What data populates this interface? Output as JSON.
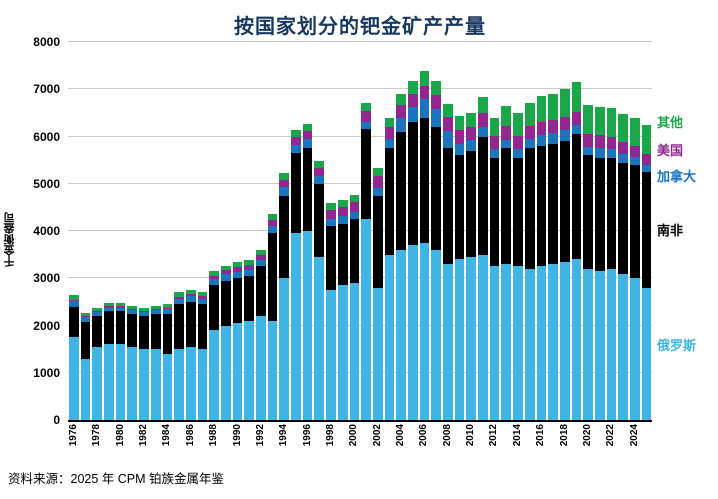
{
  "chart_data": {
    "type": "bar",
    "stacked": true,
    "title": "按国家划分的钯金矿产产量",
    "ylabel": "千金衡盎司",
    "source": "资料来源：2025 年 CPM 铂族金属年鉴",
    "ylim": [
      0,
      8000
    ],
    "ytick_step": 1000,
    "grid": true,
    "legend_position": "right",
    "x_label_every": 2,
    "x": [
      1976,
      1977,
      1978,
      1979,
      1980,
      1981,
      1982,
      1983,
      1984,
      1985,
      1986,
      1987,
      1988,
      1989,
      1990,
      1991,
      1992,
      1993,
      1994,
      1995,
      1996,
      1997,
      1998,
      1999,
      2000,
      2001,
      2002,
      2003,
      2004,
      2005,
      2006,
      2007,
      2008,
      2009,
      2010,
      2011,
      2012,
      2013,
      2014,
      2015,
      2016,
      2017,
      2018,
      2019,
      2020,
      2021,
      2022,
      2023,
      2024,
      2025
    ],
    "series": [
      {
        "name": "俄罗斯",
        "color": "#3FB4E5",
        "values": [
          1750,
          1300,
          1550,
          1600,
          1600,
          1550,
          1500,
          1500,
          1400,
          1500,
          1550,
          1500,
          1900,
          2000,
          2050,
          2100,
          2200,
          2100,
          3000,
          3950,
          4000,
          3450,
          2750,
          2850,
          2900,
          4250,
          2800,
          3500,
          3600,
          3700,
          3750,
          3600,
          3300,
          3400,
          3450,
          3500,
          3250,
          3300,
          3250,
          3200,
          3250,
          3300,
          3350,
          3400,
          3200,
          3150,
          3200,
          3100,
          3000,
          2800
        ]
      },
      {
        "name": "南非",
        "color": "#000000",
        "values": [
          650,
          780,
          650,
          700,
          700,
          700,
          700,
          750,
          850,
          950,
          950,
          950,
          950,
          950,
          950,
          950,
          1050,
          1850,
          1750,
          1700,
          1750,
          1550,
          1350,
          1300,
          1350,
          1900,
          1950,
          2250,
          2500,
          2600,
          2650,
          2600,
          2450,
          2200,
          2250,
          2500,
          2300,
          2450,
          2300,
          2550,
          2550,
          2550,
          2550,
          2650,
          2400,
          2400,
          2350,
          2350,
          2400,
          2450
        ]
      },
      {
        "name": "加拿大",
        "color": "#1B75BC",
        "values": [
          120,
          100,
          80,
          80,
          80,
          80,
          80,
          80,
          100,
          120,
          120,
          120,
          130,
          130,
          140,
          130,
          130,
          150,
          180,
          180,
          190,
          160,
          160,
          160,
          160,
          160,
          170,
          200,
          300,
          330,
          400,
          380,
          370,
          250,
          220,
          200,
          180,
          170,
          180,
          200,
          230,
          230,
          230,
          200,
          180,
          200,
          180,
          170,
          160,
          150
        ]
      },
      {
        "name": "美国",
        "color": "#92278F",
        "values": [
          30,
          30,
          30,
          30,
          30,
          30,
          30,
          30,
          30,
          40,
          40,
          50,
          70,
          90,
          100,
          110,
          120,
          140,
          150,
          160,
          170,
          180,
          190,
          200,
          210,
          230,
          240,
          250,
          260,
          270,
          280,
          290,
          290,
          280,
          280,
          290,
          290,
          300,
          290,
          280,
          280,
          280,
          280,
          280,
          280,
          280,
          270,
          260,
          250,
          240
        ]
      },
      {
        "name": "其他",
        "color": "#1CA64A",
        "values": [
          100,
          60,
          60,
          60,
          60,
          60,
          60,
          60,
          80,
          100,
          100,
          100,
          100,
          100,
          100,
          100,
          100,
          120,
          150,
          150,
          150,
          150,
          150,
          150,
          150,
          160,
          170,
          200,
          250,
          280,
          300,
          300,
          280,
          300,
          300,
          350,
          380,
          420,
          480,
          480,
          550,
          550,
          600,
          620,
          600,
          600,
          600,
          600,
          580,
          600
        ]
      }
    ]
  }
}
